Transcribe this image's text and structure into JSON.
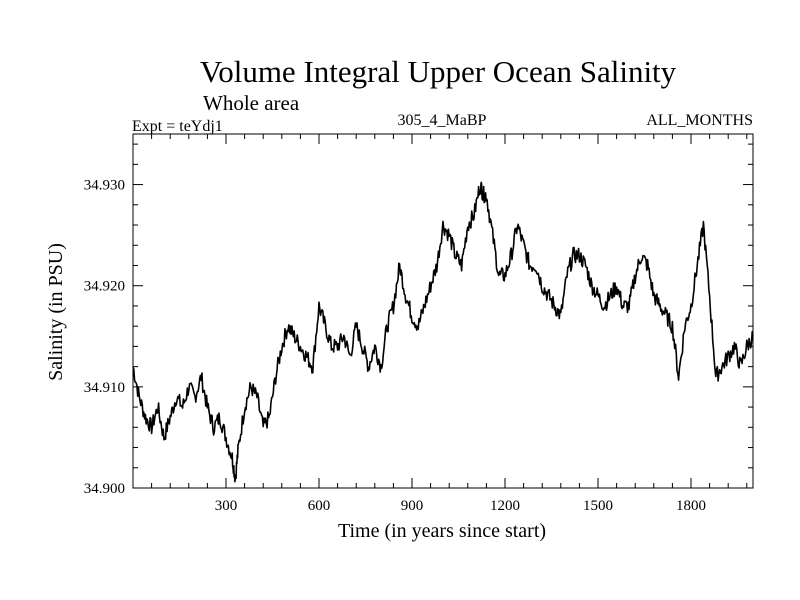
{
  "chart_data": {
    "type": "line",
    "title": "Volume Integral Upper Ocean Salinity",
    "subtitle": "Whole area",
    "experiment_label": "Expt = teYdj1",
    "run_label": "305_4_MaBP",
    "period_label": "ALL_MONTHS",
    "xlabel": "Time (in years since start)",
    "ylabel": "Salinity (in PSU)",
    "xlim": [
      0,
      2000
    ],
    "ylim": [
      34.9,
      34.935
    ],
    "xticks": [
      300,
      600,
      900,
      1200,
      1500,
      1800
    ],
    "xtick_labels": [
      "300",
      "600",
      "900",
      "1200",
      "1500",
      "1800"
    ],
    "yticks": [
      34.9,
      34.91,
      34.92,
      34.93
    ],
    "ytick_labels": [
      "34.900",
      "34.910",
      "34.920",
      "34.930"
    ],
    "grid": false,
    "line_color": "#000000",
    "series": [
      {
        "name": "Salinity",
        "x": [
          0,
          20,
          40,
          60,
          80,
          100,
          120,
          140,
          160,
          180,
          200,
          220,
          240,
          260,
          280,
          300,
          320,
          330,
          340,
          360,
          380,
          400,
          420,
          440,
          460,
          480,
          500,
          520,
          540,
          560,
          580,
          600,
          620,
          640,
          660,
          680,
          700,
          720,
          740,
          760,
          780,
          800,
          820,
          840,
          860,
          880,
          900,
          920,
          940,
          960,
          980,
          1000,
          1020,
          1040,
          1060,
          1080,
          1100,
          1120,
          1130,
          1140,
          1160,
          1180,
          1200,
          1220,
          1240,
          1260,
          1280,
          1300,
          1320,
          1340,
          1360,
          1380,
          1400,
          1420,
          1440,
          1460,
          1480,
          1500,
          1520,
          1540,
          1560,
          1580,
          1600,
          1620,
          1640,
          1660,
          1680,
          1700,
          1720,
          1740,
          1760,
          1780,
          1800,
          1820,
          1840,
          1860,
          1880,
          1900,
          1920,
          1940,
          1960,
          1980,
          2000
        ],
        "y": [
          34.912,
          34.909,
          34.907,
          34.906,
          34.908,
          34.905,
          34.907,
          34.909,
          34.908,
          34.91,
          34.909,
          34.911,
          34.908,
          34.906,
          34.907,
          34.905,
          34.903,
          34.901,
          34.904,
          34.908,
          34.91,
          34.909,
          34.906,
          34.907,
          34.911,
          34.914,
          34.916,
          34.915,
          34.914,
          34.913,
          34.912,
          34.918,
          34.916,
          34.914,
          34.914,
          34.915,
          34.913,
          34.916,
          34.914,
          34.912,
          34.914,
          34.912,
          34.916,
          34.918,
          34.922,
          34.919,
          34.917,
          34.916,
          34.918,
          34.92,
          34.922,
          34.926,
          34.925,
          34.923,
          34.922,
          34.926,
          34.927,
          34.93,
          34.929,
          34.929,
          34.925,
          34.921,
          34.921,
          34.923,
          34.926,
          34.924,
          34.922,
          34.922,
          34.92,
          34.919,
          34.918,
          34.917,
          34.921,
          34.923,
          34.923,
          34.922,
          34.92,
          34.919,
          34.918,
          34.919,
          34.92,
          34.918,
          34.918,
          34.921,
          34.923,
          34.922,
          34.919,
          34.918,
          34.917,
          34.916,
          34.911,
          34.916,
          34.918,
          34.922,
          34.926,
          34.919,
          34.911,
          34.912,
          34.913,
          34.914,
          34.912,
          34.914,
          34.915
        ]
      }
    ]
  }
}
